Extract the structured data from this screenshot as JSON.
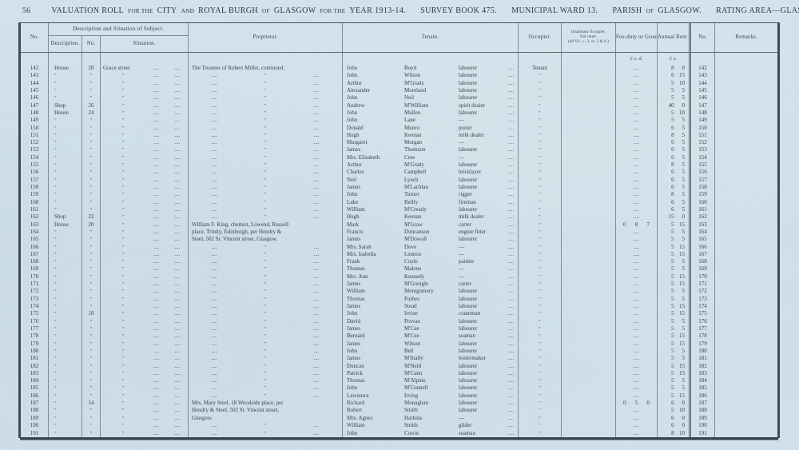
{
  "page": {
    "number": "56",
    "background": "#cfdfeb",
    "ink": "#39424b"
  },
  "title": {
    "segments": [
      {
        "text": "VALUATION ROLL",
        "small": false,
        "gap": false
      },
      {
        "text": "FOR THE",
        "small": true,
        "gap": false
      },
      {
        "text": "CITY",
        "small": false,
        "gap": false
      },
      {
        "text": "AND",
        "small": true,
        "gap": false
      },
      {
        "text": "ROYAL BURGH",
        "small": false,
        "gap": false
      },
      {
        "text": "OF",
        "small": true,
        "gap": false
      },
      {
        "text": "GLASGOW",
        "small": false,
        "gap": false
      },
      {
        "text": "FOR THE",
        "small": true,
        "gap": false
      },
      {
        "text": "YEAR 1913-14.",
        "small": false,
        "gap": false
      },
      {
        "text": "SURVEY BOOK 475.",
        "small": false,
        "gap": true
      },
      {
        "text": "MUNICIPAL WARD 13.",
        "small": false,
        "gap": true
      },
      {
        "text": "PARISH",
        "small": false,
        "gap": true
      },
      {
        "text": "OF",
        "small": true,
        "gap": false
      },
      {
        "text": "GLASGOW.",
        "small": false,
        "gap": false
      },
      {
        "text": "RATING AREA—GLASGOW.",
        "small": false,
        "gap": true
      }
    ]
  },
  "header": {
    "col_no": "No.",
    "group_desc": "Description and Situation of Subject.",
    "sub_description": "Description.",
    "sub_no": "No.",
    "sub_situation": "Situation.",
    "col_proprietor": "Proprietor.",
    "col_tenant": "Tenant.",
    "col_occupier": "Occupier.",
    "col_inhabitant_line1": "Inhabitant Occupier.",
    "col_inhabitant_line2": "Not rated.",
    "col_inhabitant_line3": "(48 Vic. c. 3, ss. 3 & 9.)",
    "col_feu": "Feu-duty or Ground Annual.",
    "col_rent": "Annual Rent or Value.",
    "col_no2": "No.",
    "col_remarks": "Remarks.",
    "feu_units": "£  s.  d.",
    "rent_units": "£  s."
  },
  "ditto": "″",
  "dots": "....",
  "rows": [
    [
      "142",
      "House",
      "28",
      "Grace street",
      "The Trustees of Robert Miller, continued.",
      "John",
      "Boyd",
      "labourer",
      "Tenant",
      "",
      "8",
      "0"
    ],
    [
      "143",
      "″",
      "″",
      "″",
      "@",
      "John",
      "Wilson",
      "labourer",
      "″",
      "",
      "6",
      "15"
    ],
    [
      "144",
      "″",
      "″",
      "″",
      "@",
      "Arthur",
      "M'Grady",
      "labourer",
      "″",
      "",
      "5",
      "10"
    ],
    [
      "145",
      "″",
      "″",
      "″",
      "@",
      "Alexander",
      "Moreland",
      "labourer",
      "″",
      "",
      "5",
      "5"
    ],
    [
      "146",
      "″",
      "″",
      "″",
      "@",
      "John",
      "Neil",
      "labourer",
      "″",
      "",
      "5",
      "5"
    ],
    [
      "147",
      "Shop",
      "26",
      "″",
      "@",
      "Andrew",
      "M'William",
      "spirit dealer",
      "″",
      "",
      "40",
      "0"
    ],
    [
      "148",
      "House",
      "24",
      "″",
      "@",
      "John",
      "Mullen",
      "labourer",
      "″",
      "",
      "5",
      "10"
    ],
    [
      "149",
      "″",
      "″",
      "″",
      "@",
      "John",
      "Lane",
      "—",
      "″",
      "",
      "5",
      "5"
    ],
    [
      "150",
      "″",
      "″",
      "″",
      "@",
      "Donald",
      "Munro",
      "porter",
      "″",
      "",
      "6",
      "5"
    ],
    [
      "151",
      "″",
      "″",
      "″",
      "@",
      "Hugh",
      "Keenan",
      "milk dealer",
      "″",
      "",
      "8",
      "5"
    ],
    [
      "152",
      "″",
      "″",
      "″",
      "@",
      "Margaret",
      "Morgan",
      "—",
      "″",
      "",
      "6",
      "5"
    ],
    [
      "153",
      "″",
      "″",
      "″",
      "@",
      "James",
      "Thomson",
      "labourer",
      "″",
      "",
      "6",
      "5"
    ],
    [
      "154",
      "″",
      "″",
      "″",
      "@",
      "Mrs. Elizabeth",
      "Cree",
      "—",
      "″",
      "",
      "6",
      "5"
    ],
    [
      "155",
      "″",
      "″",
      "″",
      "@",
      "Arthur",
      "M'Grady",
      "labourer",
      "″",
      "",
      "8",
      "5"
    ],
    [
      "156",
      "″",
      "″",
      "″",
      "@",
      "Charles",
      "Campbell",
      "bricklayer",
      "″",
      "",
      "6",
      "5"
    ],
    [
      "157",
      "″",
      "″",
      "″",
      "@",
      "Neil",
      "Lynch",
      "labourer",
      "″",
      "",
      "6",
      "5"
    ],
    [
      "158",
      "″",
      "″",
      "″",
      "@",
      "James",
      "M'Lachlan",
      "labourer",
      "″",
      "",
      "6",
      "5"
    ],
    [
      "159",
      "″",
      "″",
      "″",
      "@",
      "John",
      "Turner",
      "rigger",
      "″",
      "",
      "8",
      "5"
    ],
    [
      "160",
      "″",
      "″",
      "″",
      "@",
      "Luke",
      "Reilly",
      "fireman",
      "″",
      "",
      "6",
      "5"
    ],
    [
      "161",
      "″",
      "″",
      "″",
      "@",
      "William",
      "M'Cready",
      "labourer",
      "″",
      "",
      "6",
      "5"
    ],
    [
      "162",
      "Shop",
      "22",
      "″",
      "@",
      "Hugh",
      "Keenan",
      "milk dealer",
      "″",
      "",
      "15",
      "0"
    ],
    [
      "163",
      "House",
      "20",
      "″",
      "William F. King, chemist, Lowend, Russell",
      "Mark",
      "M'Graw",
      "carter",
      "″",
      "0 8 7",
      "5",
      "15"
    ],
    [
      "164",
      "″",
      "″",
      "″",
      "place, Trinity, Edinburgh, per Hendry &",
      "Francis",
      "Duncanson",
      "engine fitter",
      "″",
      "",
      "5",
      "5"
    ],
    [
      "165",
      "″",
      "″",
      "″",
      "Steel, 502 St. Vincent street, Glasgow.",
      "James",
      "M'Dowall",
      "labourer",
      "″",
      "",
      "5",
      "5"
    ],
    [
      "166",
      "″",
      "″",
      "″",
      "@",
      "Mrs. Sarah",
      "Dove",
      "—",
      "″",
      "",
      "5",
      "15"
    ],
    [
      "167",
      "″",
      "″",
      "″",
      "@",
      "Mrs. Isabella",
      "Lennox",
      "—",
      "″",
      "",
      "5",
      "15"
    ],
    [
      "168",
      "″",
      "″",
      "″",
      "@",
      "Frank",
      "Coyle",
      "painter",
      "″",
      "",
      "5",
      "5"
    ],
    [
      "169",
      "″",
      "″",
      "″",
      "@",
      "Thomas",
      "Malone",
      "—",
      "″",
      "",
      "5",
      "5"
    ],
    [
      "170",
      "″",
      "″",
      "″",
      "@",
      "Mrs. Ann",
      "Kennedy",
      "—",
      "″",
      "",
      "5",
      "15"
    ],
    [
      "171",
      "″",
      "″",
      "″",
      "@",
      "James",
      "M'Gonigle",
      "carter",
      "″",
      "",
      "5",
      "15"
    ],
    [
      "172",
      "″",
      "″",
      "″",
      "@",
      "William",
      "Montgomery",
      "labourer",
      "″",
      "",
      "5",
      "5"
    ],
    [
      "173",
      "″",
      "″",
      "″",
      "@",
      "Thomas",
      "Forbes",
      "labourer",
      "″",
      "",
      "5",
      "5"
    ],
    [
      "174",
      "″",
      "″",
      "″",
      "@",
      "James",
      "Stead",
      "labourer",
      "″",
      "",
      "5",
      "15"
    ],
    [
      "175",
      "″",
      "18",
      "″",
      "@",
      "John",
      "Irvine",
      "craneman",
      "″",
      "",
      "5",
      "15"
    ],
    [
      "176",
      "″",
      "″",
      "″",
      "@",
      "David",
      "Provan",
      "labourer",
      "″",
      "",
      "5",
      "5"
    ],
    [
      "177",
      "″",
      "″",
      "″",
      "@",
      "James",
      "M'Cue",
      "labourer",
      "″",
      "",
      "5",
      "5"
    ],
    [
      "178",
      "″",
      "″",
      "″",
      "@",
      "Bernard",
      "M'Cue",
      "seaman",
      "″",
      "",
      "5",
      "15"
    ],
    [
      "179",
      "″",
      "″",
      "″",
      "@",
      "James",
      "Wilson",
      "labourer",
      "″",
      "",
      "5",
      "15"
    ],
    [
      "180",
      "″",
      "″",
      "″",
      "@",
      "John",
      "Bell",
      "labourer",
      "″",
      "",
      "5",
      "5"
    ],
    [
      "181",
      "″",
      "″",
      "″",
      "@",
      "James",
      "M'Inally",
      "boilermaker",
      "″",
      "",
      "5",
      "5"
    ],
    [
      "182",
      "″",
      "″",
      "″",
      "@",
      "Duncan",
      "M'Neill",
      "labourer",
      "″",
      "",
      "5",
      "15"
    ],
    [
      "183",
      "″",
      "″",
      "″",
      "@",
      "Patrick",
      "M'Cann",
      "labourer",
      "″",
      "",
      "5",
      "15"
    ],
    [
      "184",
      "″",
      "″",
      "″",
      "@",
      "Thomas",
      "M'Alpine",
      "labourer",
      "″",
      "",
      "5",
      "5"
    ],
    [
      "185",
      "″",
      "″",
      "″",
      "@",
      "John",
      "M'Connell",
      "labourer",
      "″",
      "",
      "5",
      "5"
    ],
    [
      "186",
      "″",
      "″",
      "″",
      "@",
      "Lawrence",
      "Irving",
      "labourer",
      "″",
      "",
      "5",
      "15"
    ],
    [
      "187",
      "″",
      "14",
      "″",
      "Mrs. Mary Steel, 18 Woodside place, per",
      "Richard",
      "Monaghan",
      "labourer",
      "″",
      "0 5 0",
      "6",
      "0"
    ],
    [
      "188",
      "″",
      "″",
      "″",
      "Hendry & Steel, 502 St. Vincent street,",
      "Robert",
      "Smith",
      "labourer",
      "″",
      "",
      "5",
      "10"
    ],
    [
      "189",
      "″",
      "″",
      "″",
      "Glasgow.",
      "Mrs. Agnes",
      "Harkins",
      "—",
      "″",
      "",
      "6",
      "0"
    ],
    [
      "190",
      "″",
      "″",
      "″",
      "@",
      "William",
      "Smith",
      "gilder",
      "″",
      "",
      "6",
      "0"
    ],
    [
      "191",
      "″",
      "″",
      "″",
      "@",
      "John",
      "Cowie",
      "seaman",
      "″",
      "",
      "8",
      "10"
    ]
  ]
}
